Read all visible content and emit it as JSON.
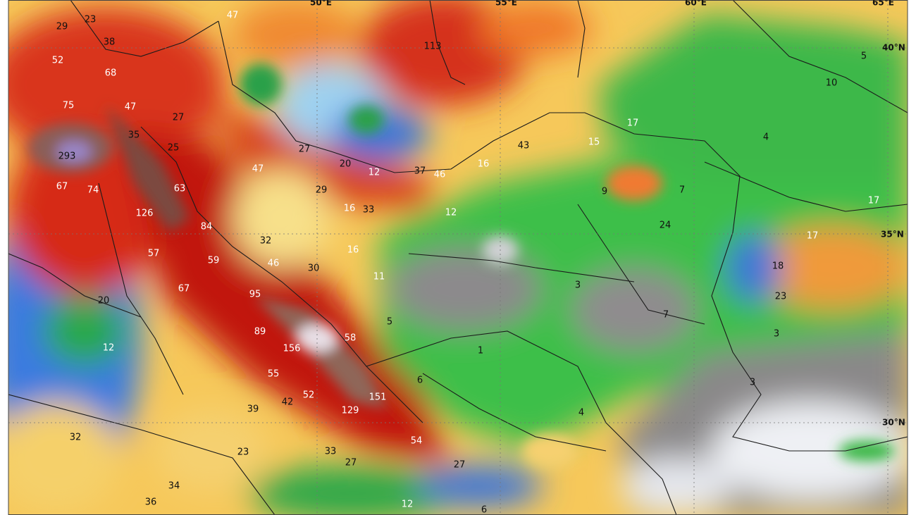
{
  "longitude_labels": [
    "50°E",
    "55°E",
    "60°E",
    "65°E"
  ],
  "latitude_labels": [
    "40°N",
    "35°N",
    "30°N"
  ],
  "precipitation_labels": [
    29,
    23,
    47,
    38,
    52,
    68,
    75,
    47,
    27,
    35,
    25,
    293,
    27,
    20,
    12,
    37,
    46,
    16,
    43,
    15,
    17,
    113,
    47,
    67,
    74,
    63,
    29,
    16,
    33,
    12,
    9,
    7,
    24,
    126,
    84,
    32,
    16,
    57,
    59,
    46,
    30,
    11,
    3,
    18,
    23,
    17,
    17,
    5,
    10,
    4,
    7,
    67,
    95,
    20,
    5,
    89,
    156,
    58,
    12,
    1,
    3,
    55,
    6,
    3,
    52,
    151,
    129,
    39,
    42,
    4,
    54,
    23,
    32,
    33,
    27,
    27,
    34,
    36,
    12,
    6
  ]
}
